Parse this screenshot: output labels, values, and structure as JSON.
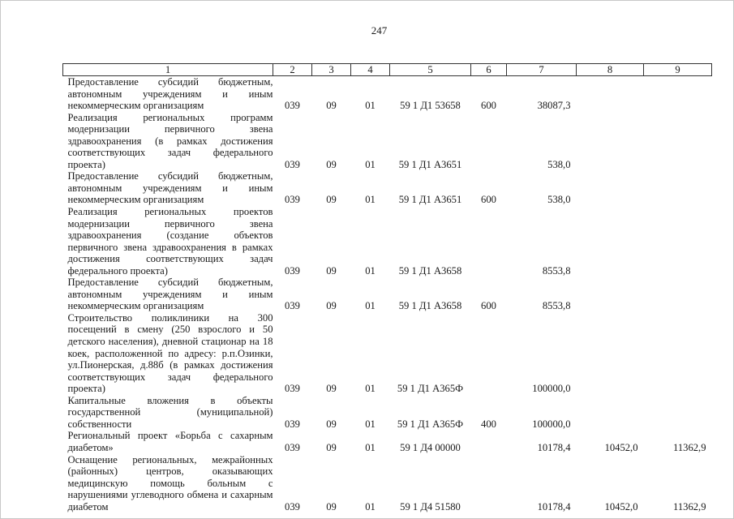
{
  "page_number": "247",
  "headers": [
    "1",
    "2",
    "3",
    "4",
    "5",
    "6",
    "7",
    "8",
    "9"
  ],
  "rows": [
    {
      "name": "Предоставление субсидий бюджетным, автономным учреждениям и иным некоммерческим организациям",
      "c2": "039",
      "c3": "09",
      "c4": "01",
      "c5": "59 1 Д1 53658",
      "c6": "600",
      "c7": "38087,3",
      "c8": "",
      "c9": ""
    },
    {
      "name": "Реализация региональных программ модернизации первичного звена здравоохранения (в рамках достижения соответствующих задач федерального проекта)",
      "c2": "039",
      "c3": "09",
      "c4": "01",
      "c5": "59 1 Д1 А3651",
      "c6": "",
      "c7": "538,0",
      "c8": "",
      "c9": ""
    },
    {
      "name": "Предоставление субсидий бюджетным, автономным учреждениям и иным некоммерческим организациям",
      "c2": "039",
      "c3": "09",
      "c4": "01",
      "c5": "59 1 Д1 А3651",
      "c6": "600",
      "c7": "538,0",
      "c8": "",
      "c9": ""
    },
    {
      "name": "Реализация региональных проектов модернизации первичного звена здравоохранения (создание объектов первичного звена здравоохранения в рамках достижения соответствующих задач федерального проекта)",
      "c2": "039",
      "c3": "09",
      "c4": "01",
      "c5": "59 1 Д1 А3658",
      "c6": "",
      "c7": "8553,8",
      "c8": "",
      "c9": ""
    },
    {
      "name": "Предоставление субсидий бюджетным, автономным учреждениям и иным некоммерческим организациям",
      "c2": "039",
      "c3": "09",
      "c4": "01",
      "c5": "59 1 Д1 А3658",
      "c6": "600",
      "c7": "8553,8",
      "c8": "",
      "c9": ""
    },
    {
      "name": "Строительство поликлиники на 300 посещений в смену (250 взрослого и 50 детского населения), дневной стационар на 18 коек, расположенной по адресу: р.п.Озинки, ул.Пионерская, д.88б (в рамках достижения соответствующих задач федерального проекта)",
      "c2": "039",
      "c3": "09",
      "c4": "01",
      "c5": "59 1 Д1 А365Ф",
      "c6": "",
      "c7": "100000,0",
      "c8": "",
      "c9": ""
    },
    {
      "name": "Капитальные вложения в объекты государственной (муниципальной) собственности",
      "c2": "039",
      "c3": "09",
      "c4": "01",
      "c5": "59 1 Д1 А365Ф",
      "c6": "400",
      "c7": "100000,0",
      "c8": "",
      "c9": ""
    },
    {
      "name": "Региональный проект «Борьба с сахарным диабетом»",
      "c2": "039",
      "c3": "09",
      "c4": "01",
      "c5": "59 1 Д4 00000",
      "c6": "",
      "c7": "10178,4",
      "c8": "10452,0",
      "c9": "11362,9"
    },
    {
      "name": "Оснащение региональных, межрайонных (районных) центров, оказывающих медицинскую помощь больным с нарушениями углеводного обмена и сахарным диабетом",
      "c2": "039",
      "c3": "09",
      "c4": "01",
      "c5": "59 1 Д4 51580",
      "c6": "",
      "c7": "10178,4",
      "c8": "10452,0",
      "c9": "11362,9"
    }
  ]
}
